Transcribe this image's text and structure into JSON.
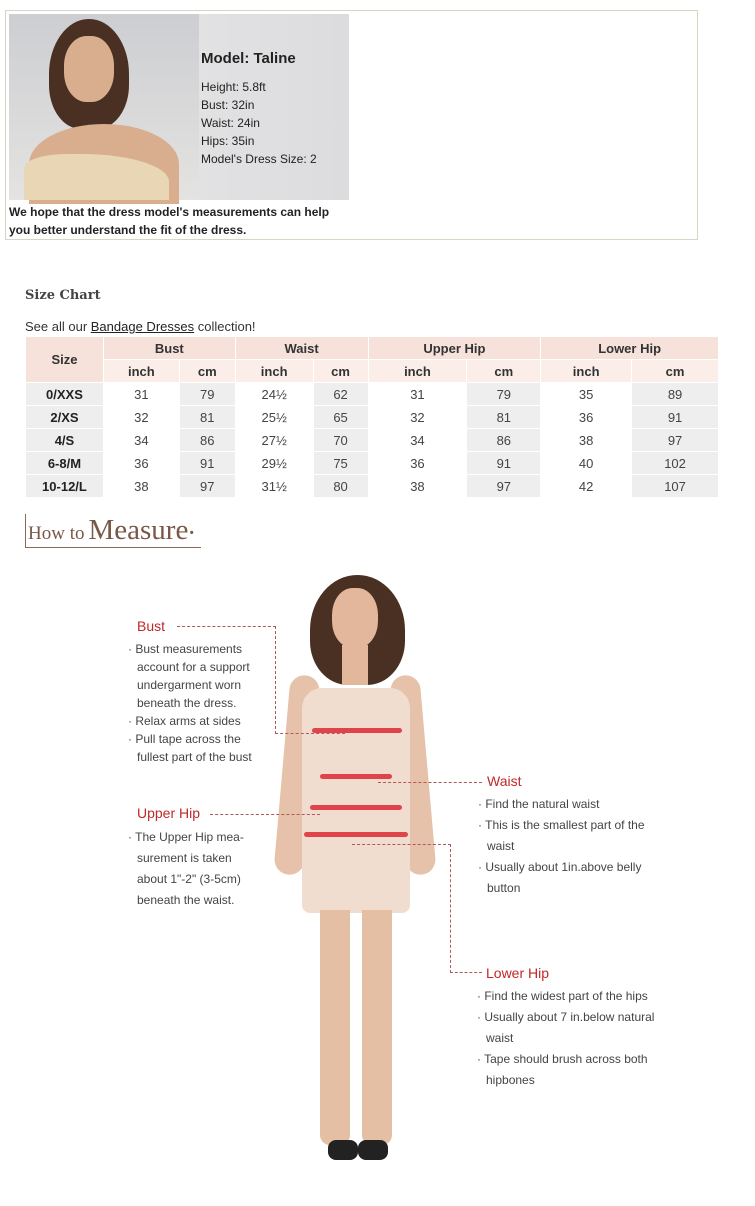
{
  "model": {
    "name": "Model: Taline",
    "stats": [
      "Height: 5.8ft",
      "Bust: 32in",
      "Waist: 24in",
      "Hips: 35in",
      "Model's Dress Size: 2"
    ],
    "note": "We hope that the dress model's measurements can help you better understand the fit of the dress."
  },
  "size_chart": {
    "title": "Size Chart",
    "intro_prefix": "See all our ",
    "intro_link": "Bandage Dresses",
    "intro_suffix": " collection!",
    "size_header": "Size",
    "groups": [
      "Bust",
      "Waist",
      "Upper Hip",
      "Lower Hip"
    ],
    "units": [
      "inch",
      "cm",
      "inch",
      "cm",
      "inch",
      "cm",
      "inch",
      "cm"
    ],
    "rows": [
      {
        "size": "0/XXS",
        "values": [
          "31",
          "79",
          "24½",
          "62",
          "31",
          "79",
          "35",
          "89"
        ]
      },
      {
        "size": "2/XS",
        "values": [
          "32",
          "81",
          "25½",
          "65",
          "32",
          "81",
          "36",
          "91"
        ]
      },
      {
        "size": "4/S",
        "values": [
          "34",
          "86",
          "27½",
          "70",
          "34",
          "86",
          "38",
          "97"
        ]
      },
      {
        "size": "6-8/M",
        "values": [
          "36",
          "91",
          "29½",
          "75",
          "36",
          "91",
          "40",
          "102"
        ]
      },
      {
        "size": "10-12/L",
        "values": [
          "38",
          "97",
          "31½",
          "80",
          "38",
          "97",
          "42",
          "107"
        ]
      }
    ]
  },
  "how_to_measure": {
    "title_small": "How to",
    "title_big": "Measure",
    "bust": {
      "label": "Bust",
      "points": [
        "Bust measurements account for a support undergarment worn beneath the dress.",
        "Relax arms at sides",
        "Pull tape across the fullest part of the bust"
      ]
    },
    "upper_hip": {
      "label": "Upper Hip",
      "points": [
        "The Upper Hip mea-surement is taken about 1\"-2\" (3-5cm) beneath the waist."
      ]
    },
    "waist": {
      "label": "Waist",
      "points": [
        "Find the natural waist",
        "This is the smallest part of the waist",
        "Usually about 1in.above belly button"
      ]
    },
    "lower_hip": {
      "label": "Lower Hip",
      "points": [
        "Find the widest part of the hips",
        "Usually about 7 in.below natural waist",
        "Tape should brush across both hipbones"
      ]
    }
  },
  "colors": {
    "accent": "#c0282a",
    "header_bg": "#f6e2da",
    "title_brown": "#7a5848"
  }
}
